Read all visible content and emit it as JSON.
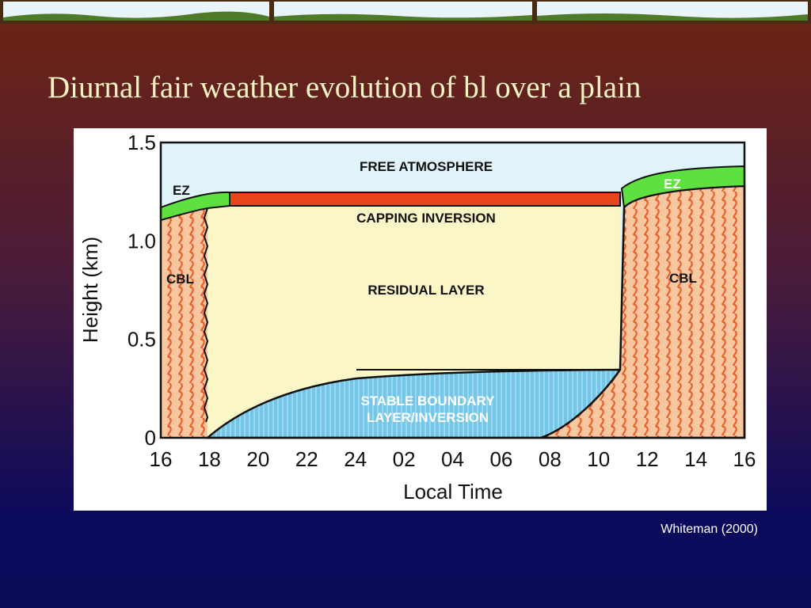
{
  "slide": {
    "title": "Diurnal fair weather evolution of bl over a plain",
    "credit": "Whiteman (2000)"
  },
  "figure": {
    "y_axis_label": "Height (km)",
    "x_axis_label": "Local Time",
    "y_ticks": [
      "0",
      "0.5",
      "1.0",
      "1.5"
    ],
    "x_ticks": [
      "16",
      "18",
      "20",
      "22",
      "24",
      "02",
      "04",
      "06",
      "08",
      "10",
      "12",
      "14",
      "16"
    ],
    "regions": {
      "free_atmosphere": "FREE ATMOSPHERE",
      "ez_left": "EZ",
      "ez_right": "EZ",
      "capping_inversion": "CAPPING INVERSION",
      "residual_layer": "RESIDUAL LAYER",
      "cbl_left": "CBL",
      "cbl_right": "CBL",
      "stable_boundary_layer": [
        "STABLE BOUNDARY",
        "LAYER/INVERSION"
      ]
    }
  }
}
